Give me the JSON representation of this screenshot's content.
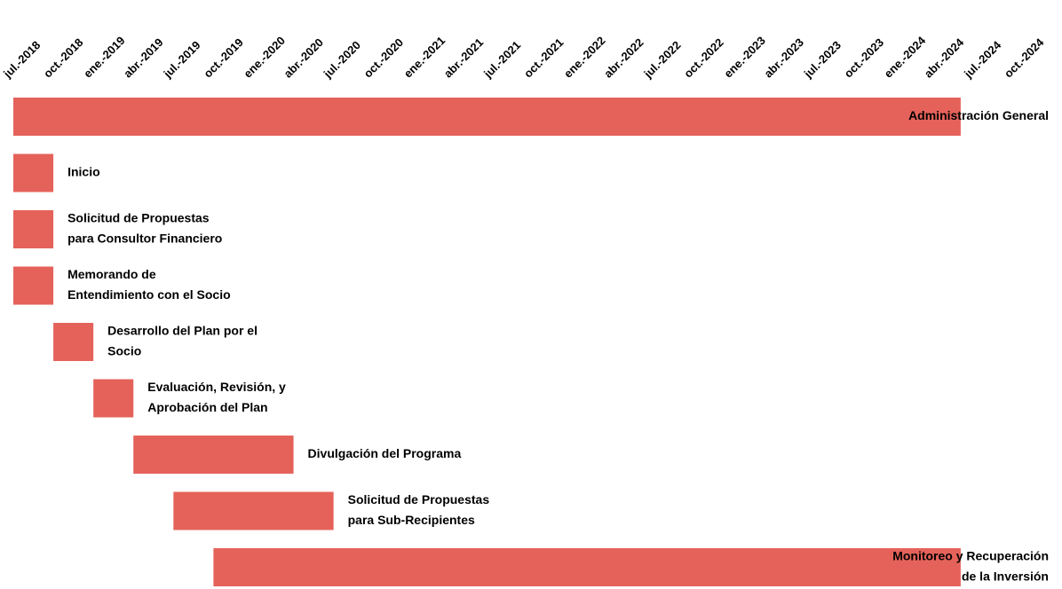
{
  "chart_data": {
    "type": "gantt",
    "color": "#e5625a",
    "xlim": [
      "2018-07",
      "2024-10"
    ],
    "xticks": [
      {
        "value": "2018-07",
        "label": "jul.-2018"
      },
      {
        "value": "2018-10",
        "label": "oct.-2018"
      },
      {
        "value": "2019-01",
        "label": "ene.-2019"
      },
      {
        "value": "2019-04",
        "label": "abr.-2019"
      },
      {
        "value": "2019-07",
        "label": "jul.-2019"
      },
      {
        "value": "2019-10",
        "label": "oct.-2019"
      },
      {
        "value": "2020-01",
        "label": "ene.-2020"
      },
      {
        "value": "2020-04",
        "label": "abr.-2020"
      },
      {
        "value": "2020-07",
        "label": "jul.-2020"
      },
      {
        "value": "2020-10",
        "label": "oct.-2020"
      },
      {
        "value": "2021-01",
        "label": "ene.-2021"
      },
      {
        "value": "2021-04",
        "label": "abr.-2021"
      },
      {
        "value": "2021-07",
        "label": "jul.-2021"
      },
      {
        "value": "2021-10",
        "label": "oct.-2021"
      },
      {
        "value": "2022-01",
        "label": "ene.-2022"
      },
      {
        "value": "2022-04",
        "label": "abr.-2022"
      },
      {
        "value": "2022-07",
        "label": "jul.-2022"
      },
      {
        "value": "2022-10",
        "label": "oct.-2022"
      },
      {
        "value": "2023-01",
        "label": "ene.-2023"
      },
      {
        "value": "2023-04",
        "label": "abr.-2023"
      },
      {
        "value": "2023-07",
        "label": "jul.-2023"
      },
      {
        "value": "2023-10",
        "label": "oct.-2023"
      },
      {
        "value": "2024-01",
        "label": "ene.-2024"
      },
      {
        "value": "2024-04",
        "label": "abr.-2024"
      },
      {
        "value": "2024-07",
        "label": "jul.-2024"
      },
      {
        "value": "2024-10",
        "label": "oct.-2024"
      }
    ],
    "tasks": [
      {
        "name": [
          "Administración General"
        ],
        "start": "2018-07",
        "end": "2024-06",
        "label_align": "right"
      },
      {
        "name": [
          "Inicio"
        ],
        "start": "2018-07",
        "end": "2018-10"
      },
      {
        "name": [
          "Solicitud de Propuestas",
          "para Consultor Financiero"
        ],
        "start": "2018-07",
        "end": "2018-10"
      },
      {
        "name": [
          "Memorando de",
          "Entendimiento con el Socio"
        ],
        "start": "2018-07",
        "end": "2018-10"
      },
      {
        "name": [
          "Desarrollo del Plan por el",
          "Socio"
        ],
        "start": "2018-10",
        "end": "2019-01"
      },
      {
        "name": [
          "Evaluación, Revisión, y",
          "Aprobación del Plan"
        ],
        "start": "2019-01",
        "end": "2019-04"
      },
      {
        "name": [
          "Divulgación del Programa"
        ],
        "start": "2019-04",
        "end": "2020-04"
      },
      {
        "name": [
          "Solicitud de Propuestas",
          "para Sub-Recipientes"
        ],
        "start": "2019-07",
        "end": "2020-07"
      },
      {
        "name": [
          "Monitoreo y Recuperación",
          "de la Inversión"
        ],
        "start": "2019-10",
        "end": "2024-06",
        "label_align": "right"
      }
    ]
  }
}
